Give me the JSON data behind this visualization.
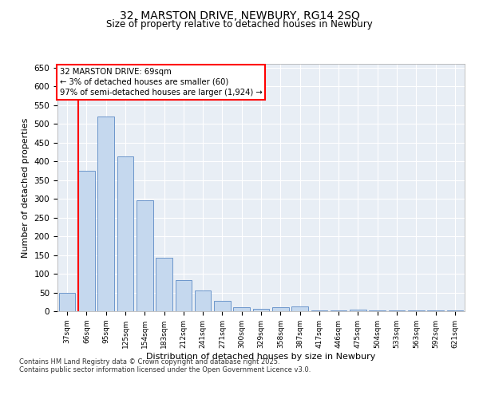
{
  "title_line1": "32, MARSTON DRIVE, NEWBURY, RG14 2SQ",
  "title_line2": "Size of property relative to detached houses in Newbury",
  "xlabel": "Distribution of detached houses by size in Newbury",
  "ylabel": "Number of detached properties",
  "categories": [
    "37sqm",
    "66sqm",
    "95sqm",
    "125sqm",
    "154sqm",
    "183sqm",
    "212sqm",
    "241sqm",
    "271sqm",
    "300sqm",
    "329sqm",
    "358sqm",
    "387sqm",
    "417sqm",
    "446sqm",
    "475sqm",
    "504sqm",
    "533sqm",
    "563sqm",
    "592sqm",
    "621sqm"
  ],
  "values": [
    50,
    375,
    520,
    413,
    297,
    143,
    83,
    55,
    28,
    10,
    7,
    10,
    12,
    3,
    3,
    4,
    3,
    3,
    2,
    3,
    3
  ],
  "bar_color": "#c5d8ee",
  "bar_edge_color": "#5b8ac5",
  "annotation_text_line1": "32 MARSTON DRIVE: 69sqm",
  "annotation_text_line2": "← 3% of detached houses are smaller (60)",
  "annotation_text_line3": "97% of semi-detached houses are larger (1,924) →",
  "ylim": [
    0,
    660
  ],
  "yticks": [
    0,
    50,
    100,
    150,
    200,
    250,
    300,
    350,
    400,
    450,
    500,
    550,
    600,
    650
  ],
  "footer_line1": "Contains HM Land Registry data © Crown copyright and database right 2025.",
  "footer_line2": "Contains public sector information licensed under the Open Government Licence v3.0.",
  "plot_bg_color": "#e8eef5",
  "figsize": [
    6.0,
    5.0
  ],
  "dpi": 100
}
